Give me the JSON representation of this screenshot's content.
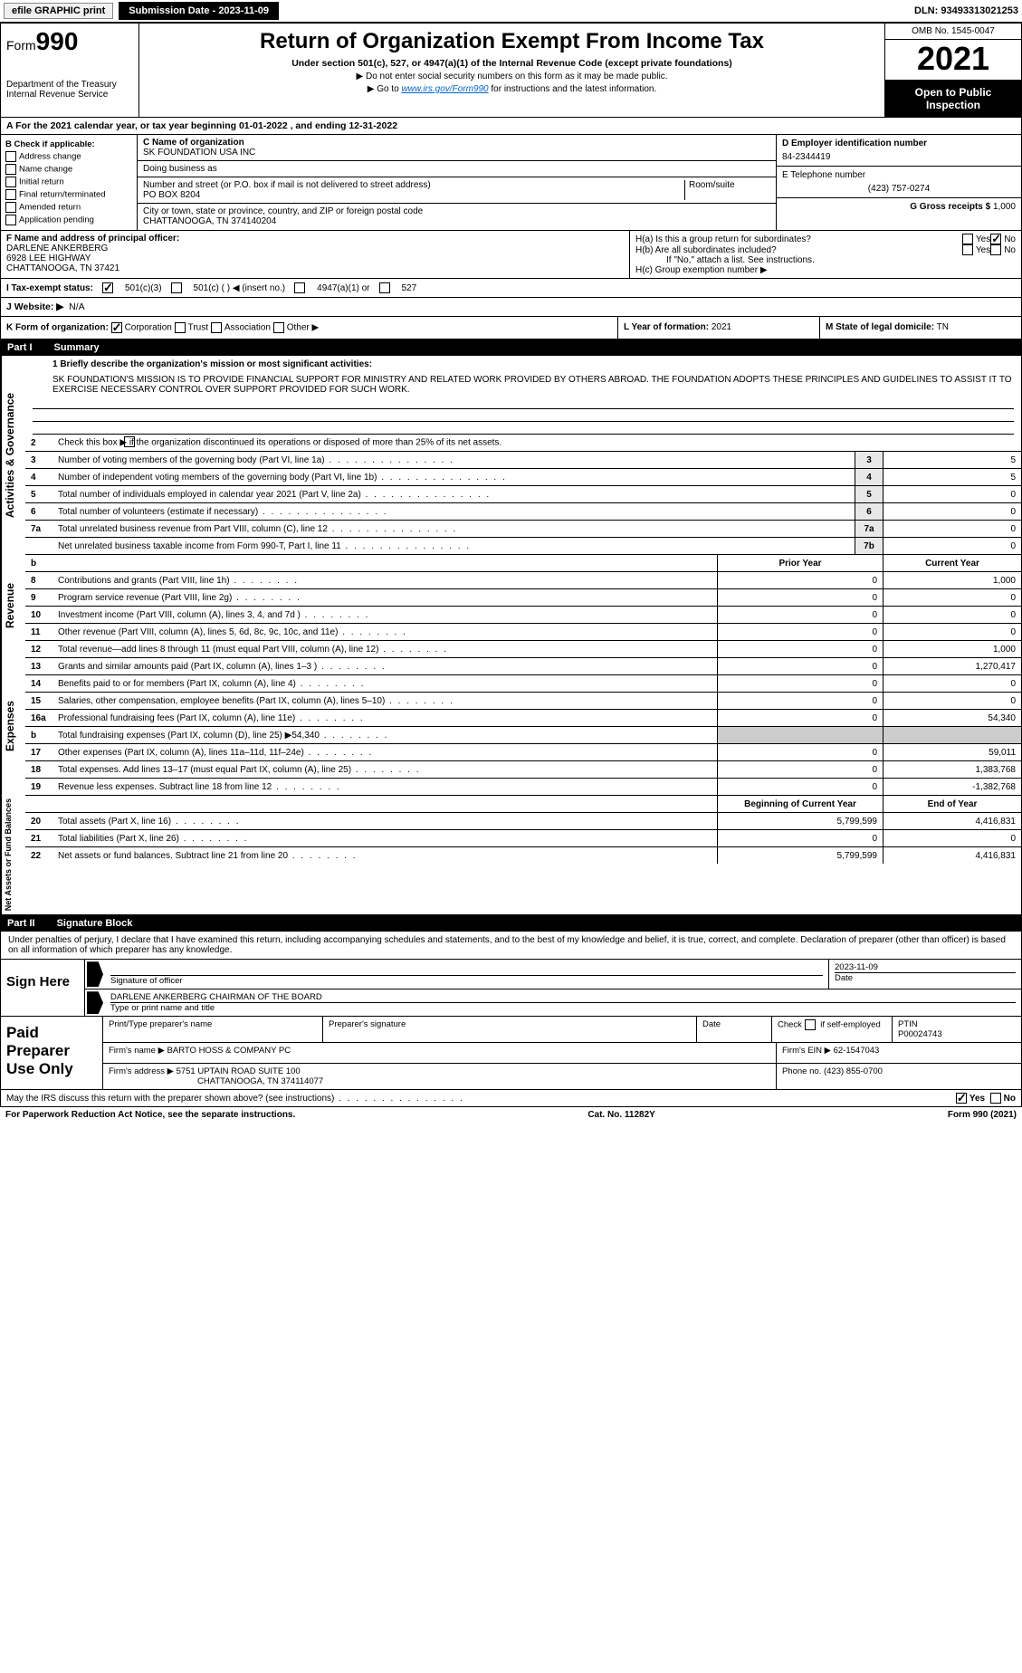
{
  "topbar": {
    "efile": "efile GRAPHIC print",
    "subm": "Submission Date - 2023-11-09",
    "dln": "DLN: 93493313021253"
  },
  "header": {
    "form_prefix": "Form",
    "form_num": "990",
    "dept1": "Department of the Treasury",
    "dept2": "Internal Revenue Service",
    "title": "Return of Organization Exempt From Income Tax",
    "sub1": "Under section 501(c), 527, or 4947(a)(1) of the Internal Revenue Code (except private foundations)",
    "sub2": "▶ Do not enter social security numbers on this form as it may be made public.",
    "sub3_pre": "▶ Go to ",
    "sub3_link": "www.irs.gov/Form990",
    "sub3_post": " for instructions and the latest information.",
    "omb": "OMB No. 1545-0047",
    "year": "2021",
    "opentopublic": "Open to Public Inspection"
  },
  "rowA": "A For the 2021 calendar year, or tax year beginning 01-01-2022    , and ending 12-31-2022",
  "colB": {
    "head": "B Check if applicable:",
    "items": [
      "Address change",
      "Name change",
      "Initial return",
      "Final return/terminated",
      "Amended return",
      "Application pending"
    ]
  },
  "colC": {
    "name_label": "C Name of organization",
    "name": "SK FOUNDATION USA INC",
    "dba_label": "Doing business as",
    "dba": "",
    "street_label": "Number and street (or P.O. box if mail is not delivered to street address)",
    "street": "PO BOX 8204",
    "room_label": "Room/suite",
    "city_label": "City or town, state or province, country, and ZIP or foreign postal code",
    "city": "CHATTANOOGA, TN  374140204"
  },
  "colD": {
    "d_label": "D Employer identification number",
    "d_val": "84-2344419",
    "e_label": "E Telephone number",
    "e_val": "(423) 757-0274",
    "g_label": "G Gross receipts $",
    "g_val": "1,000"
  },
  "rowF": {
    "label": "F  Name and address of principal officer:",
    "name": "DARLENE ANKERBERG",
    "addr1": "6928 LEE HIGHWAY",
    "addr2": "CHATTANOOGA, TN  37421"
  },
  "rowH": {
    "ha": "H(a)  Is this a group return for subordinates?",
    "hb": "H(b)  Are all subordinates included?",
    "hb_note": "If \"No,\" attach a list. See instructions.",
    "hc": "H(c)  Group exemption number ▶",
    "yes": "Yes",
    "no": "No"
  },
  "rowI": {
    "label": "I  Tax-exempt status:",
    "opt1": "501(c)(3)",
    "opt2": "501(c) (   ) ◀ (insert no.)",
    "opt3": "4947(a)(1) or",
    "opt4": "527"
  },
  "rowJ": {
    "label": "J  Website: ▶",
    "val": "N/A"
  },
  "rowK": {
    "label": "K Form of organization:",
    "opts": [
      "Corporation",
      "Trust",
      "Association",
      "Other ▶"
    ]
  },
  "rowL": {
    "label": "L Year of formation:",
    "val": "2021"
  },
  "rowM": {
    "label": "M State of legal domicile:",
    "val": "TN"
  },
  "part1": {
    "tab": "Part I",
    "title": "Summary",
    "q1": "1  Briefly describe the organization's mission or most significant activities:",
    "mission": "SK FOUNDATION'S MISSION IS TO PROVIDE FINANCIAL SUPPORT FOR MINISTRY AND RELATED WORK PROVIDED BY OTHERS ABROAD. THE FOUNDATION ADOPTS THESE PRINCIPLES AND GUIDELINES TO ASSIST IT TO EXERCISE NECESSARY CONTROL OVER SUPPORT PROVIDED FOR SUCH WORK.",
    "q2": "Check this box ▶        if the organization discontinued its operations or disposed of more than 25% of its net assets.",
    "sideA": "Activities & Governance",
    "sideR": "Revenue",
    "sideE": "Expenses",
    "sideN": "Net Assets or Fund Balances",
    "rows_ag": [
      {
        "n": "3",
        "d": "Number of voting members of the governing body (Part VI, line 1a)",
        "box": "3",
        "v": "5"
      },
      {
        "n": "4",
        "d": "Number of independent voting members of the governing body (Part VI, line 1b)",
        "box": "4",
        "v": "5"
      },
      {
        "n": "5",
        "d": "Total number of individuals employed in calendar year 2021 (Part V, line 2a)",
        "box": "5",
        "v": "0"
      },
      {
        "n": "6",
        "d": "Total number of volunteers (estimate if necessary)",
        "box": "6",
        "v": "0"
      },
      {
        "n": "7a",
        "d": "Total unrelated business revenue from Part VIII, column (C), line 12",
        "box": "7a",
        "v": "0"
      },
      {
        "n": "",
        "d": "Net unrelated business taxable income from Form 990-T, Part I, line 11",
        "box": "7b",
        "v": "0"
      }
    ],
    "hdr_prior": "Prior Year",
    "hdr_current": "Current Year",
    "rows_rev": [
      {
        "n": "8",
        "d": "Contributions and grants (Part VIII, line 1h)",
        "p": "0",
        "c": "1,000"
      },
      {
        "n": "9",
        "d": "Program service revenue (Part VIII, line 2g)",
        "p": "0",
        "c": "0"
      },
      {
        "n": "10",
        "d": "Investment income (Part VIII, column (A), lines 3, 4, and 7d )",
        "p": "0",
        "c": "0"
      },
      {
        "n": "11",
        "d": "Other revenue (Part VIII, column (A), lines 5, 6d, 8c, 9c, 10c, and 11e)",
        "p": "0",
        "c": "0"
      },
      {
        "n": "12",
        "d": "Total revenue—add lines 8 through 11 (must equal Part VIII, column (A), line 12)",
        "p": "0",
        "c": "1,000"
      }
    ],
    "rows_exp": [
      {
        "n": "13",
        "d": "Grants and similar amounts paid (Part IX, column (A), lines 1–3 )",
        "p": "0",
        "c": "1,270,417"
      },
      {
        "n": "14",
        "d": "Benefits paid to or for members (Part IX, column (A), line 4)",
        "p": "0",
        "c": "0"
      },
      {
        "n": "15",
        "d": "Salaries, other compensation, employee benefits (Part IX, column (A), lines 5–10)",
        "p": "0",
        "c": "0"
      },
      {
        "n": "16a",
        "d": "Professional fundraising fees (Part IX, column (A), line 11e)",
        "p": "0",
        "c": "54,340"
      },
      {
        "n": "b",
        "d": "Total fundraising expenses (Part IX, column (D), line 25) ▶54,340",
        "p": "",
        "c": "",
        "shaded": true
      },
      {
        "n": "17",
        "d": "Other expenses (Part IX, column (A), lines 11a–11d, 11f–24e)",
        "p": "0",
        "c": "59,011"
      },
      {
        "n": "18",
        "d": "Total expenses. Add lines 13–17 (must equal Part IX, column (A), line 25)",
        "p": "0",
        "c": "1,383,768"
      },
      {
        "n": "19",
        "d": "Revenue less expenses. Subtract line 18 from line 12",
        "p": "0",
        "c": "-1,382,768"
      }
    ],
    "hdr_begin": "Beginning of Current Year",
    "hdr_end": "End of Year",
    "rows_net": [
      {
        "n": "20",
        "d": "Total assets (Part X, line 16)",
        "p": "5,799,599",
        "c": "4,416,831"
      },
      {
        "n": "21",
        "d": "Total liabilities (Part X, line 26)",
        "p": "0",
        "c": "0"
      },
      {
        "n": "22",
        "d": "Net assets or fund balances. Subtract line 21 from line 20",
        "p": "5,799,599",
        "c": "4,416,831"
      }
    ]
  },
  "part2": {
    "tab": "Part II",
    "title": "Signature Block",
    "decl": "Under penalties of perjury, I declare that I have examined this return, including accompanying schedules and statements, and to the best of my knowledge and belief, it is true, correct, and complete. Declaration of preparer (other than officer) is based on all information of which preparer has any knowledge."
  },
  "sign": {
    "side": "Sign Here",
    "sig_label": "Signature of officer",
    "date_label": "Date",
    "date_val": "2023-11-09",
    "name_val": "DARLENE ANKERBERG  CHAIRMAN OF THE BOARD",
    "name_label": "Type or print name and title"
  },
  "paid": {
    "side": "Paid Preparer Use Only",
    "h1": "Print/Type preparer's name",
    "h2": "Preparer's signature",
    "h3": "Date",
    "h4_pre": "Check",
    "h4_post": "if self-employed",
    "h5": "PTIN",
    "ptin": "P00024743",
    "firm_label": "Firm's name    ▶",
    "firm": "BARTO HOSS & COMPANY PC",
    "ein_label": "Firm's EIN ▶",
    "ein": "62-1547043",
    "addr_label": "Firm's address ▶",
    "addr1": "5751 UPTAIN ROAD SUITE 100",
    "addr2": "CHATTANOOGA, TN  374114077",
    "phone_label": "Phone no.",
    "phone": "(423) 855-0700"
  },
  "footer": {
    "discuss": "May the IRS discuss this return with the preparer shown above? (see instructions)",
    "yes": "Yes",
    "no": "No",
    "pra": "For Paperwork Reduction Act Notice, see the separate instructions.",
    "cat": "Cat. No. 11282Y",
    "form": "Form 990 (2021)"
  },
  "colors": {
    "black": "#000000",
    "white": "#ffffff",
    "link": "#0066cc",
    "shade": "#cccccc",
    "box_shade": "#e8e8e8"
  }
}
